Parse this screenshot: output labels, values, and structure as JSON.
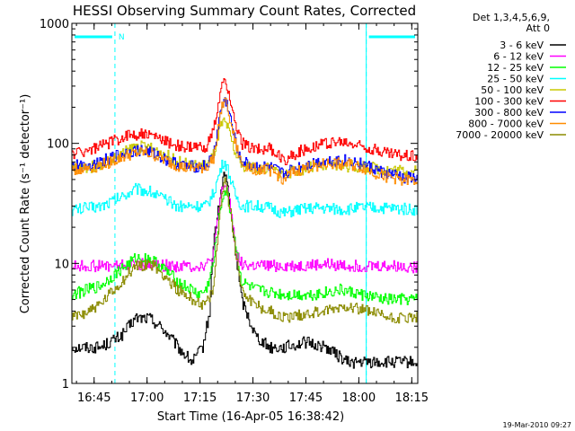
{
  "chart_data": {
    "type": "line",
    "title": "HESSI Observing Summary Count Rates, Corrected",
    "xlabel": "Start Time (16-Apr-05 16:38:42)",
    "ylabel": "Corrected Count Rate (s⁻¹ detector⁻¹)",
    "yscale": "log",
    "ylim": [
      1,
      1000
    ],
    "xlim_minutes": [
      0,
      98
    ],
    "x_tick_labels": [
      "16:45",
      "17:00",
      "17:15",
      "17:30",
      "17:45",
      "18:00",
      "18:15"
    ],
    "x_tick_minutes": [
      6.3,
      21.3,
      36.3,
      51.3,
      66.3,
      81.3,
      96.3
    ],
    "y_tick_labels": [
      "1",
      "10",
      "100",
      "1000"
    ],
    "y_tick_values": [
      1,
      10,
      100,
      1000
    ],
    "legend_header": [
      "Det 1,3,4,5,6,9,",
      "Att 0"
    ],
    "legend_position": "top-right",
    "footer_date": "19-Mar-2010 09:27",
    "annotations": [
      {
        "text": "N",
        "x_minute": 12.2
      }
    ],
    "night_intervals_minutes": [
      [
        0,
        12.2
      ],
      [
        83.4,
        98
      ]
    ],
    "series": [
      {
        "name": "3 - 6 keV",
        "color": "#000000",
        "x": [
          0,
          8,
          14,
          18,
          22,
          26,
          30,
          34,
          37,
          39,
          40,
          42,
          43,
          44,
          46,
          48,
          52,
          56,
          60,
          66,
          72,
          78,
          84,
          90,
          98
        ],
        "y": [
          2,
          2,
          2.5,
          3.5,
          3.5,
          2.8,
          2,
          1.5,
          2,
          4,
          15,
          35,
          58,
          45,
          15,
          5,
          2.5,
          2,
          2,
          2.2,
          2,
          1.5,
          1.5,
          1.5,
          1.5
        ]
      },
      {
        "name": "6 - 12 keV",
        "color": "#ff00ff",
        "x": [
          0,
          10,
          20,
          30,
          36,
          39,
          40,
          41,
          42,
          43,
          44,
          45,
          46,
          47,
          48,
          50,
          56,
          64,
          72,
          80,
          88,
          98
        ],
        "y": [
          9.5,
          9.5,
          9.8,
          9.5,
          9.5,
          10,
          12,
          20,
          35,
          45,
          42,
          28,
          16,
          11,
          10,
          9.5,
          9.5,
          9.5,
          9.8,
          9.5,
          9.5,
          9.3
        ]
      },
      {
        "name": "12 - 25 keV",
        "color": "#00ff00",
        "x": [
          0,
          8,
          14,
          18,
          22,
          26,
          30,
          36,
          38,
          40,
          42,
          43,
          44,
          46,
          48,
          52,
          60,
          68,
          76,
          82,
          88,
          98
        ],
        "y": [
          5.5,
          6.5,
          9,
          11,
          11,
          9,
          7,
          5.5,
          6,
          10,
          28,
          40,
          38,
          16,
          7,
          6,
          5.5,
          5.5,
          6,
          5.5,
          5,
          5
        ]
      },
      {
        "name": "25 - 50 keV",
        "color": "#00ffff",
        "x": [
          0,
          8,
          14,
          18,
          22,
          26,
          30,
          34,
          38,
          40,
          42,
          43,
          44,
          46,
          48,
          52,
          56,
          60,
          64,
          70,
          76,
          82,
          88,
          98
        ],
        "y": [
          28,
          30,
          36,
          42,
          40,
          34,
          30,
          30,
          30,
          38,
          60,
          72,
          62,
          38,
          30,
          30,
          29,
          26,
          28,
          29,
          28,
          29,
          29,
          28
        ]
      },
      {
        "name": "50 - 100 keV",
        "color": "#c8c800",
        "x": [
          0,
          6,
          12,
          16,
          18,
          22,
          26,
          30,
          34,
          38,
          40,
          42,
          43,
          44,
          46,
          48,
          52,
          56,
          60,
          64,
          68,
          72,
          76,
          80,
          86,
          92,
          98
        ],
        "y": [
          62,
          64,
          75,
          88,
          95,
          92,
          82,
          70,
          65,
          66,
          80,
          135,
          150,
          135,
          85,
          66,
          62,
          62,
          55,
          60,
          63,
          64,
          65,
          64,
          62,
          60,
          58
        ]
      },
      {
        "name": "100 - 300 keV",
        "color": "#ff0000",
        "x": [
          0,
          6,
          12,
          16,
          20,
          24,
          28,
          32,
          36,
          38,
          40,
          42,
          43,
          44,
          46,
          48,
          52,
          56,
          60,
          62,
          66,
          70,
          74,
          78,
          82,
          86,
          90,
          98
        ],
        "y": [
          82,
          90,
          105,
          118,
          120,
          112,
          100,
          92,
          92,
          95,
          125,
          260,
          330,
          300,
          150,
          100,
          90,
          90,
          72,
          78,
          90,
          98,
          102,
          100,
          95,
          88,
          82,
          78
        ]
      },
      {
        "name": "300 - 800 keV",
        "color": "#0000ff",
        "x": [
          0,
          6,
          12,
          16,
          20,
          24,
          28,
          32,
          36,
          38,
          40,
          42,
          43,
          44,
          46,
          48,
          52,
          56,
          60,
          62,
          66,
          70,
          74,
          78,
          82,
          86,
          90,
          98
        ],
        "y": [
          65,
          67,
          78,
          85,
          88,
          80,
          70,
          64,
          64,
          65,
          78,
          180,
          230,
          210,
          110,
          70,
          64,
          63,
          55,
          60,
          66,
          70,
          72,
          72,
          68,
          60,
          55,
          50
        ]
      },
      {
        "name": "800 - 7000 keV",
        "color": "#ff8c00",
        "x": [
          0,
          6,
          12,
          16,
          20,
          24,
          28,
          32,
          36,
          38,
          40,
          42,
          43,
          44,
          46,
          48,
          52,
          56,
          60,
          62,
          66,
          70,
          74,
          78,
          82,
          86,
          90,
          98
        ],
        "y": [
          60,
          63,
          72,
          80,
          84,
          78,
          68,
          62,
          62,
          63,
          75,
          175,
          225,
          205,
          105,
          67,
          61,
          60,
          50,
          56,
          62,
          66,
          68,
          67,
          63,
          56,
          52,
          48
        ]
      },
      {
        "name": "7000 - 20000 keV",
        "color": "#8b8b00",
        "x": [
          0,
          8,
          14,
          18,
          22,
          26,
          30,
          34,
          38,
          40,
          42,
          43,
          44,
          46,
          48,
          52,
          56,
          60,
          66,
          72,
          78,
          84,
          90,
          98
        ],
        "y": [
          3.5,
          4.5,
          7,
          9.5,
          10,
          8,
          6,
          5,
          4.5,
          6,
          30,
          50,
          40,
          15,
          6,
          4.5,
          4,
          3.5,
          3.8,
          4,
          4.5,
          4,
          3.5,
          3.5
        ]
      }
    ]
  }
}
